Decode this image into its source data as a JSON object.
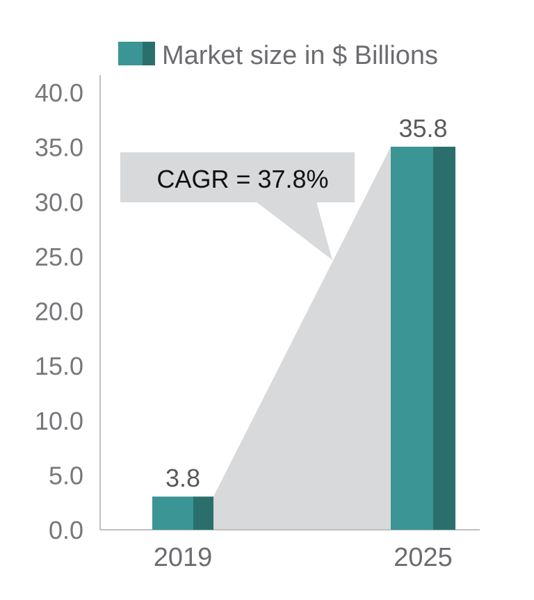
{
  "chart_data": {
    "type": "bar",
    "categories": [
      "2019",
      "2025"
    ],
    "series": [
      {
        "name": "Market size in $ Billions",
        "values": [
          3.8,
          35.8
        ],
        "labels": [
          "3.8",
          "35.8"
        ]
      }
    ],
    "ylim": [
      0,
      40
    ],
    "yticks": [
      "0.0",
      "5.0",
      "10.0",
      "15.0",
      "20.0",
      "25.0",
      "30.0",
      "35.0",
      "40.0"
    ],
    "legend_position": "top",
    "annotation": {
      "text": "CAGR = 37.8%"
    },
    "colors": {
      "bar_face": "#3a9594",
      "bar_side": "#2a6f6b",
      "callout": "#d8d9da",
      "axis": "#bfbfbf"
    }
  }
}
